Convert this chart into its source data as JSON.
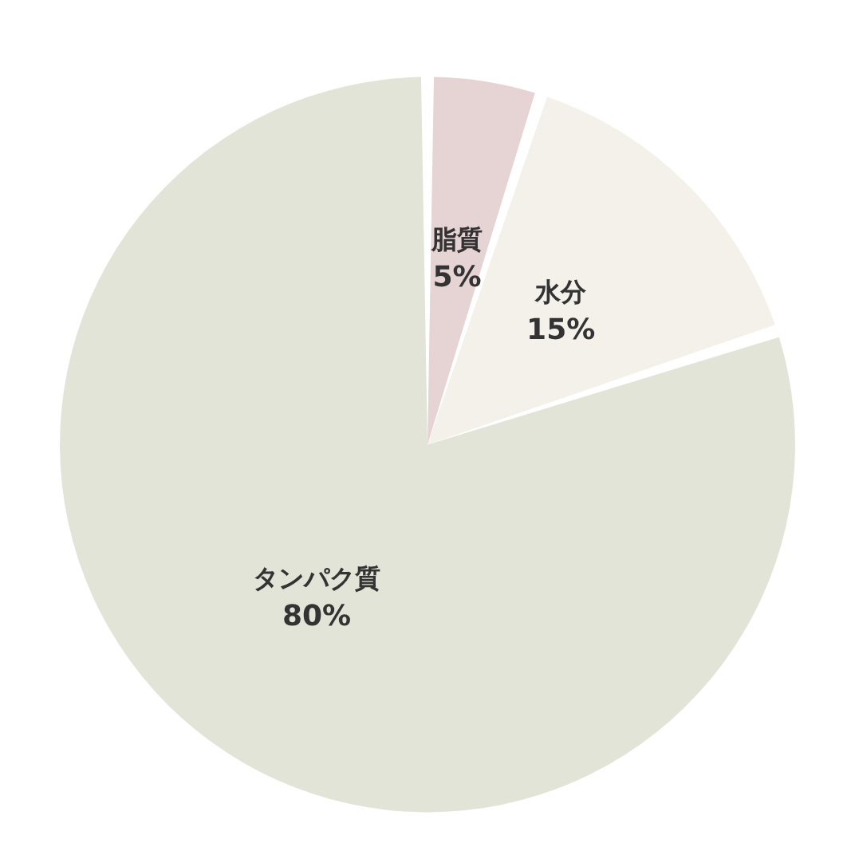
{
  "chart_data": {
    "type": "pie",
    "categories": [
      "脂質",
      "水分",
      "タンパク質"
    ],
    "values": [
      5,
      15,
      80
    ],
    "colors": [
      "#e6d3d3",
      "#f4f1ea",
      "#e3e4d8"
    ],
    "value_labels": [
      "5%",
      "15%",
      "80%"
    ],
    "legend": false
  }
}
